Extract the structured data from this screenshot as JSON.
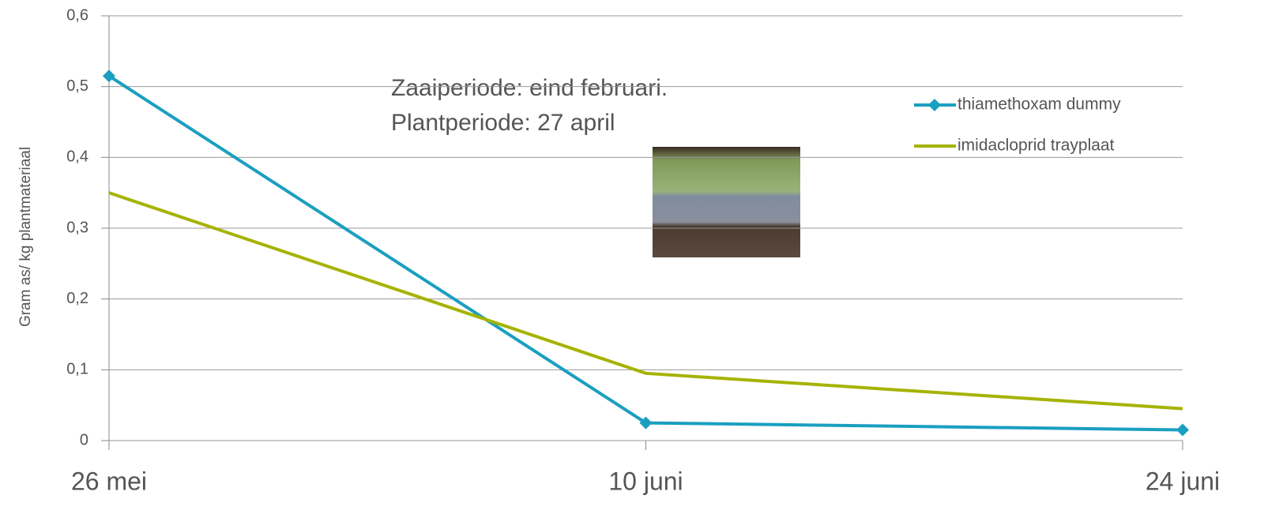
{
  "chart_data": {
    "type": "line",
    "y_label": "Gram as/ kg plantmateriaal",
    "annotations": [
      "Zaaiperiode: eind februari.",
      "Plantperiode: 27 april"
    ],
    "categories": [
      "26 mei",
      "10 juni",
      "24 juni"
    ],
    "series": [
      {
        "name": "thiamethoxam dummy",
        "color": "#1a9fc0",
        "marker": "diamond",
        "values": [
          0.515,
          0.025,
          0.015
        ]
      },
      {
        "name": "imidacloprid trayplaat",
        "color": "#a5b300",
        "marker": "none",
        "values": [
          0.35,
          0.095,
          0.045
        ]
      }
    ],
    "ylim": [
      0,
      0.6
    ],
    "yticks": [
      0,
      {
        "value": 0.1,
        "label": "0,1"
      },
      {
        "value": 0.2,
        "label": "0,2"
      },
      {
        "value": 0.3,
        "label": "0,3"
      },
      {
        "value": 0.4,
        "label": "0,4"
      },
      {
        "value": 0.5,
        "label": "0,5"
      },
      {
        "value": 0.6,
        "label": "0,6"
      }
    ],
    "grid": true,
    "legend": "top-right"
  }
}
